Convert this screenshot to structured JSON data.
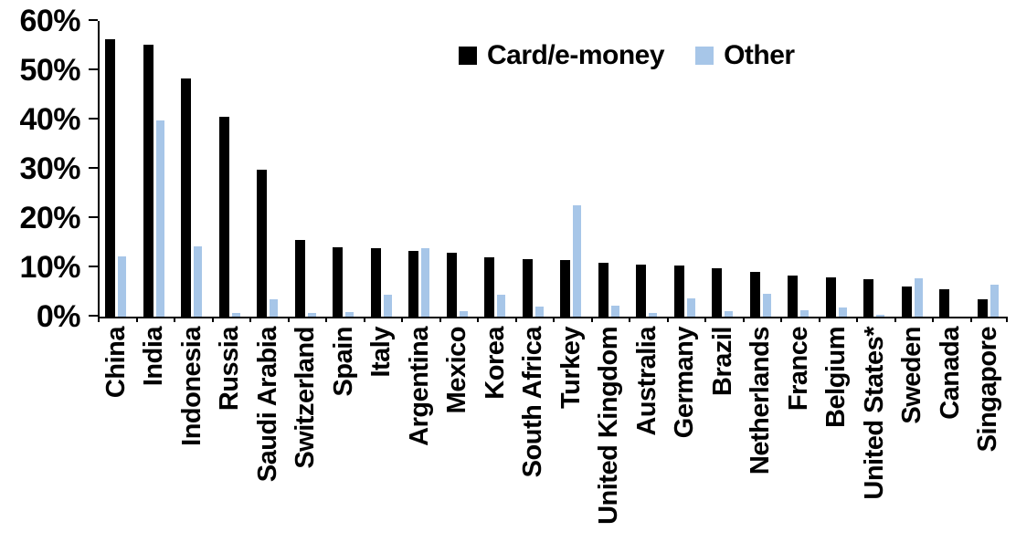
{
  "chart_data": {
    "type": "bar",
    "title": "",
    "xlabel": "",
    "ylabel": "",
    "grid": false,
    "legend_position": "top-center",
    "categories": [
      "China",
      "India",
      "Indonesia",
      "Russia",
      "Saudi Arabia",
      "Switzerland",
      "Spain",
      "Italy",
      "Argentina",
      "Mexico",
      "Korea",
      "South Africa",
      "Turkey",
      "United Kingdom",
      "Australia",
      "Germany",
      "Brazil",
      "Netherlands",
      "France",
      "Belgium",
      "United States*",
      "Sweden",
      "Canada",
      "Singapore"
    ],
    "series": [
      {
        "name": "Card/e-money",
        "color": "#000000",
        "values": [
          56.3,
          55.2,
          48.4,
          40.6,
          29.9,
          15.5,
          14.1,
          13.9,
          13.3,
          12.9,
          12.1,
          11.7,
          11.4,
          11.0,
          10.6,
          10.4,
          9.8,
          9.1,
          8.4,
          8.0,
          7.6,
          6.2,
          5.6,
          3.6
        ]
      },
      {
        "name": "Other",
        "color": "#A7C6E8",
        "values": [
          12.3,
          39.8,
          14.3,
          0.8,
          3.6,
          0.8,
          0.9,
          4.4,
          13.9,
          1.2,
          4.5,
          2.1,
          22.5,
          2.2,
          0.8,
          3.7,
          1.1,
          4.7,
          1.3,
          1.8,
          0.3,
          7.8,
          0.0,
          6.4
        ]
      }
    ],
    "y_axis": {
      "min": 0,
      "max": 60,
      "step": 10,
      "tick_labels": [
        "0%",
        "10%",
        "20%",
        "30%",
        "40%",
        "50%",
        "60%"
      ]
    }
  },
  "legend": {
    "items": [
      {
        "label": "Card/e-money",
        "color": "#000000"
      },
      {
        "label": "Other",
        "color": "#A7C6E8"
      }
    ]
  },
  "colors": {
    "axis": "#000000",
    "background": "#FFFFFF"
  }
}
